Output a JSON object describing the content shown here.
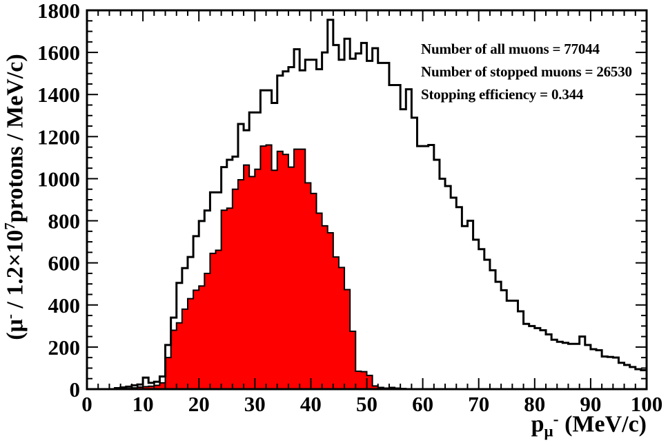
{
  "figure": {
    "background": "#ffffff",
    "annotations": [
      {
        "id": "all-muons",
        "text": "Number of all muons = 77044"
      },
      {
        "id": "stopped-muons",
        "text": "Number of stopped muons = 26530"
      },
      {
        "id": "efficiency",
        "text": "Stopping efficiency = 0.344"
      }
    ],
    "y_axis_title_parts": {
      "p1": "(μ",
      "sup1": "-",
      "p2": " / 1.2×10",
      "sup2": "7",
      "p3": "protons / MeV/c)"
    },
    "x_axis_title_parts": {
      "p1": "p",
      "sub": "μ",
      "sub_sup": "-",
      "p2": " (MeV/c)"
    }
  },
  "colors": {
    "stopped_fill": "#ff0000",
    "line": "#000000",
    "background": "#ffffff"
  },
  "chart_data": {
    "type": "bar",
    "subtype": "step_histogram",
    "title": "",
    "xlabel": "p_mu- (MeV/c)",
    "ylabel": "(mu- / 1.2x10^7 protons / MeV/c)",
    "x_range": [
      0,
      100
    ],
    "y_range": [
      0,
      1800
    ],
    "bin_width": 1,
    "grid": false,
    "legend_position": "none",
    "x_major_ticks": [
      0,
      10,
      20,
      30,
      40,
      50,
      60,
      70,
      80,
      90,
      100
    ],
    "x_minor_step": 2,
    "y_major_ticks": [
      0,
      200,
      400,
      600,
      800,
      1000,
      1200,
      1400,
      1600,
      1800
    ],
    "y_minor_step": 50,
    "series": [
      {
        "name": "all muons",
        "total": 77044,
        "style": "open",
        "line_color": "#000000",
        "values": [
          0,
          0,
          0,
          0,
          0,
          5,
          8,
          12,
          18,
          22,
          55,
          30,
          35,
          60,
          210,
          340,
          505,
          575,
          628,
          727,
          799,
          849,
          935,
          935,
          1055,
          1090,
          1105,
          1260,
          1230,
          1315,
          1315,
          1420,
          1420,
          1360,
          1490,
          1510,
          1530,
          1615,
          1515,
          1565,
          1565,
          1520,
          1600,
          1755,
          1635,
          1565,
          1665,
          1570,
          1595,
          1645,
          1560,
          1620,
          1550,
          1550,
          1445,
          1445,
          1330,
          1425,
          1290,
          1155,
          1155,
          1160,
          1090,
          1000,
          965,
          910,
          865,
          775,
          800,
          710,
          665,
          615,
          565,
          510,
          470,
          420,
          420,
          370,
          310,
          300,
          290,
          280,
          260,
          235,
          225,
          220,
          215,
          215,
          250,
          210,
          190,
          185,
          155,
          153,
          150,
          125,
          115,
          105,
          95,
          90
        ]
      },
      {
        "name": "stopped muons",
        "total": 26530,
        "style": "filled",
        "line_color": "#000000",
        "fill_color": "#ff0000",
        "values": [
          0,
          0,
          0,
          0,
          0,
          0,
          0,
          3,
          6,
          10,
          12,
          14,
          18,
          30,
          150,
          280,
          315,
          380,
          430,
          470,
          490,
          550,
          645,
          660,
          850,
          860,
          950,
          995,
          1065,
          1010,
          1045,
          1155,
          1160,
          1040,
          1130,
          1115,
          1055,
          1140,
          1140,
          980,
          930,
          836,
          776,
          743,
          628,
          578,
          473,
          275,
          85,
          83,
          65,
          15,
          8,
          5,
          8,
          5,
          3,
          0,
          0,
          0,
          0,
          0,
          0,
          0,
          0,
          0,
          0,
          0,
          0,
          0,
          0,
          0,
          0,
          0,
          0,
          0,
          0,
          0,
          0,
          0,
          0,
          0,
          0,
          0,
          0,
          0,
          0,
          0,
          0,
          0,
          0,
          0,
          0,
          0,
          0,
          0,
          0,
          0,
          0,
          0
        ]
      }
    ]
  }
}
